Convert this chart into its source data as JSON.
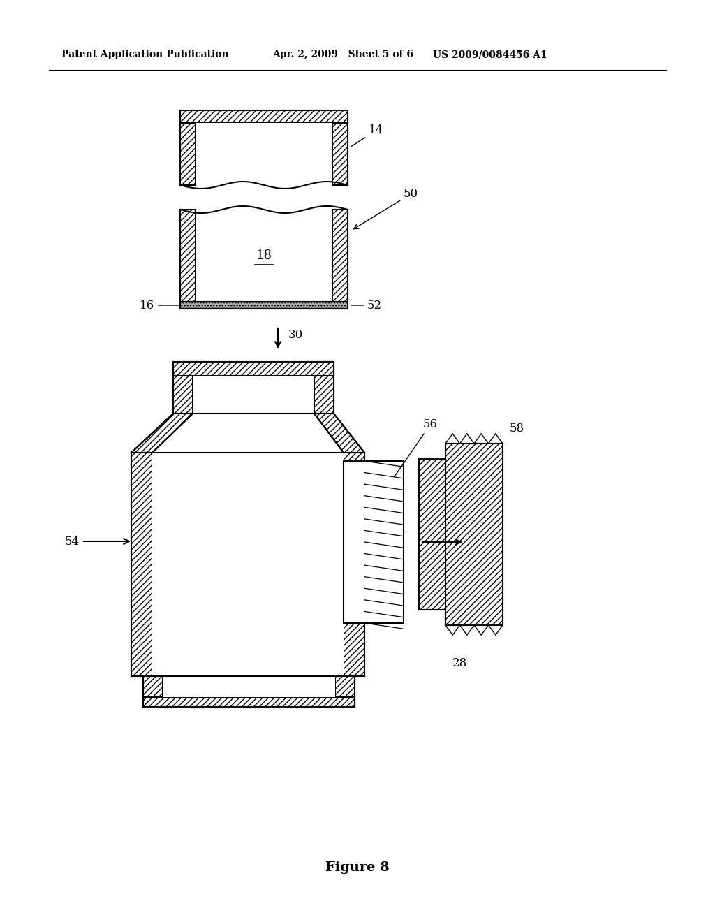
{
  "bg_color": "#ffffff",
  "header_left": "Patent Application Publication",
  "header_mid": "Apr. 2, 2009   Sheet 5 of 6",
  "header_right": "US 2009/0084456 A1",
  "figure_label": "Figure 8",
  "label_14": "14",
  "label_50": "50",
  "label_18": "18",
  "label_16": "16",
  "label_52": "52",
  "label_30": "30",
  "label_54": "54",
  "label_56": "56",
  "label_58": "58",
  "label_28": "28"
}
